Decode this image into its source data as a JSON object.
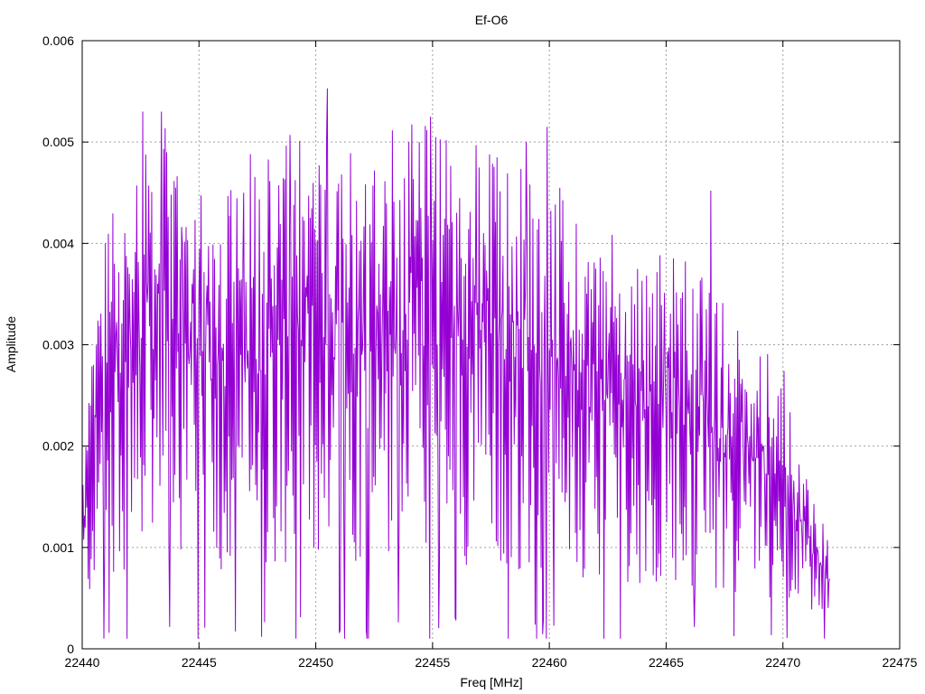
{
  "chart_data": {
    "type": "line",
    "title": "Ef-O6",
    "xlabel": "Freq [MHz]",
    "ylabel": "Amplitude",
    "xlim": [
      22440,
      22475
    ],
    "ylim": [
      0,
      0.006
    ],
    "x_ticks": [
      "22440",
      "22445",
      "22450",
      "22455",
      "22460",
      "22465",
      "22470",
      "22475"
    ],
    "y_ticks": [
      "0",
      "0.001",
      "0.002",
      "0.003",
      "0.004",
      "0.005",
      "0.006"
    ],
    "grid": true,
    "series": [
      {
        "color": "#9400d3",
        "x_start": 22440,
        "x_end": 22472,
        "peaks": [
          {
            "x": 22442.6,
            "y": 0.0053
          },
          {
            "x": 22443.4,
            "y": 0.0053
          },
          {
            "x": 22450.5,
            "y": 0.00553
          },
          {
            "x": 22459.9,
            "y": 0.00515
          },
          {
            "x": 22448.9,
            "y": 0.00507
          },
          {
            "x": 22454.0,
            "y": 0.005
          },
          {
            "x": 22447.2,
            "y": 0.00488
          },
          {
            "x": 22454.9,
            "y": 0.00525
          },
          {
            "x": 22459.0,
            "y": 0.005
          },
          {
            "x": 22446.9,
            "y": 0.0045
          },
          {
            "x": 22466.9,
            "y": 0.00452
          },
          {
            "x": 22441.0,
            "y": 0.004
          },
          {
            "x": 22444.3,
            "y": 0.004
          }
        ],
        "envelope": [
          {
            "x": 22440,
            "y": 0.0012
          },
          {
            "x": 22441,
            "y": 0.0028
          },
          {
            "x": 22443,
            "y": 0.0034
          },
          {
            "x": 22446,
            "y": 0.003
          },
          {
            "x": 22450,
            "y": 0.0033
          },
          {
            "x": 22455,
            "y": 0.0034
          },
          {
            "x": 22460,
            "y": 0.003
          },
          {
            "x": 22463,
            "y": 0.0026
          },
          {
            "x": 22466,
            "y": 0.0025
          },
          {
            "x": 22468,
            "y": 0.0021
          },
          {
            "x": 22470,
            "y": 0.0018
          },
          {
            "x": 22471,
            "y": 0.0012
          },
          {
            "x": 22472,
            "y": 0.0007
          }
        ],
        "sample_count": 1000
      }
    ]
  }
}
